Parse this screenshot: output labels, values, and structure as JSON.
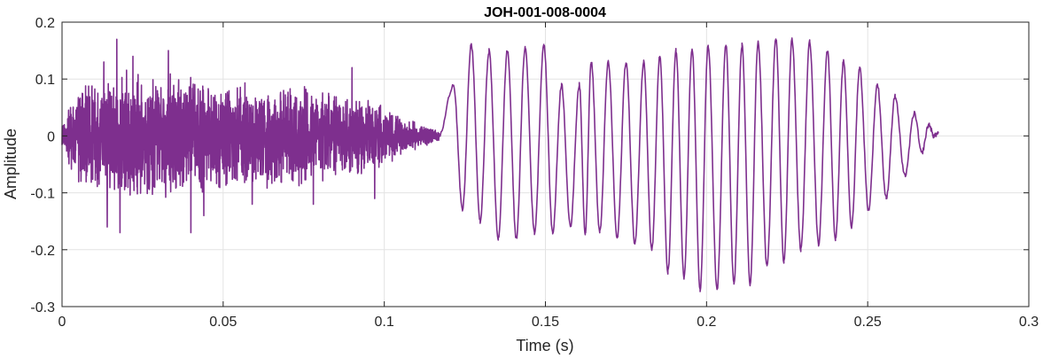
{
  "chart_data": {
    "type": "line",
    "title": "JOH-001-008-0004",
    "xlabel": "Time (s)",
    "ylabel": "Amplitude",
    "xlim": [
      0,
      0.3
    ],
    "ylim": [
      -0.3,
      0.2
    ],
    "xticks": [
      0,
      0.05,
      0.1,
      0.15,
      0.2,
      0.25,
      0.3
    ],
    "xtick_labels": [
      "0",
      "0.05",
      "0.1",
      "0.15",
      "0.2",
      "0.25",
      "0.3"
    ],
    "yticks": [
      -0.3,
      -0.2,
      -0.1,
      0,
      0.1,
      0.2
    ],
    "ytick_labels": [
      "-0.3",
      "-0.2",
      "-0.1",
      "0",
      "0.1",
      "0.2"
    ],
    "grid": true,
    "line_color": "#7E2F8E",
    "series": [
      {
        "segments": [
          {
            "label": "noisy unvoiced section",
            "t_start": 0.0,
            "t_end": 0.117,
            "envelope": [
              [
                0.0,
                0.02
              ],
              [
                0.005,
                0.09
              ],
              [
                0.01,
                0.1
              ],
              [
                0.02,
                0.12
              ],
              [
                0.03,
                0.11
              ],
              [
                0.04,
                0.11
              ],
              [
                0.05,
                0.1
              ],
              [
                0.06,
                0.1
              ],
              [
                0.07,
                0.095
              ],
              [
                0.08,
                0.09
              ],
              [
                0.09,
                0.075
              ],
              [
                0.1,
                0.055
              ],
              [
                0.105,
                0.035
              ],
              [
                0.11,
                0.025
              ],
              [
                0.117,
                0.01
              ]
            ],
            "spikes": [
              [
                0.013,
                0.13
              ],
              [
                0.017,
                0.17
              ],
              [
                0.022,
                0.14
              ],
              [
                0.033,
                0.15
              ],
              [
                0.014,
                -0.16
              ],
              [
                0.018,
                -0.17
              ],
              [
                0.04,
                -0.17
              ],
              [
                0.044,
                -0.14
              ],
              [
                0.059,
                -0.12
              ],
              [
                0.078,
                -0.12
              ],
              [
                0.097,
                -0.11
              ],
              [
                0.09,
                0.12
              ]
            ]
          },
          {
            "label": "voiced periodic section",
            "cycles": [
              [
                0.1215,
                0.09,
                -0.13
              ],
              [
                0.127,
                0.16,
                -0.15
              ],
              [
                0.1325,
                0.15,
                -0.18
              ],
              [
                0.1382,
                0.15,
                -0.18
              ],
              [
                0.1437,
                0.155,
                -0.17
              ],
              [
                0.1495,
                0.16,
                -0.17
              ],
              [
                0.155,
                0.09,
                -0.16
              ],
              [
                0.1605,
                0.09,
                -0.17
              ],
              [
                0.1642,
                0.13,
                -0.17
              ],
              [
                0.1695,
                0.13,
                -0.18
              ],
              [
                0.175,
                0.13,
                -0.19
              ],
              [
                0.1805,
                0.13,
                -0.2
              ],
              [
                0.1855,
                0.14,
                -0.24
              ],
              [
                0.1905,
                0.15,
                -0.25
              ],
              [
                0.1955,
                0.155,
                -0.27
              ],
              [
                0.2005,
                0.16,
                -0.27
              ],
              [
                0.206,
                0.16,
                -0.26
              ],
              [
                0.211,
                0.16,
                -0.26
              ],
              [
                0.216,
                0.165,
                -0.23
              ],
              [
                0.2215,
                0.17,
                -0.22
              ],
              [
                0.2265,
                0.17,
                -0.2
              ],
              [
                0.232,
                0.165,
                -0.19
              ],
              [
                0.2375,
                0.15,
                -0.18
              ],
              [
                0.2425,
                0.13,
                -0.16
              ],
              [
                0.2475,
                0.12,
                -0.13
              ],
              [
                0.253,
                0.09,
                -0.11
              ],
              [
                0.2585,
                0.07,
                -0.07
              ],
              [
                0.2645,
                0.04,
                -0.03
              ],
              [
                0.269,
                0.02,
                0.0
              ]
            ],
            "t_end": 0.272
          }
        ]
      }
    ]
  }
}
